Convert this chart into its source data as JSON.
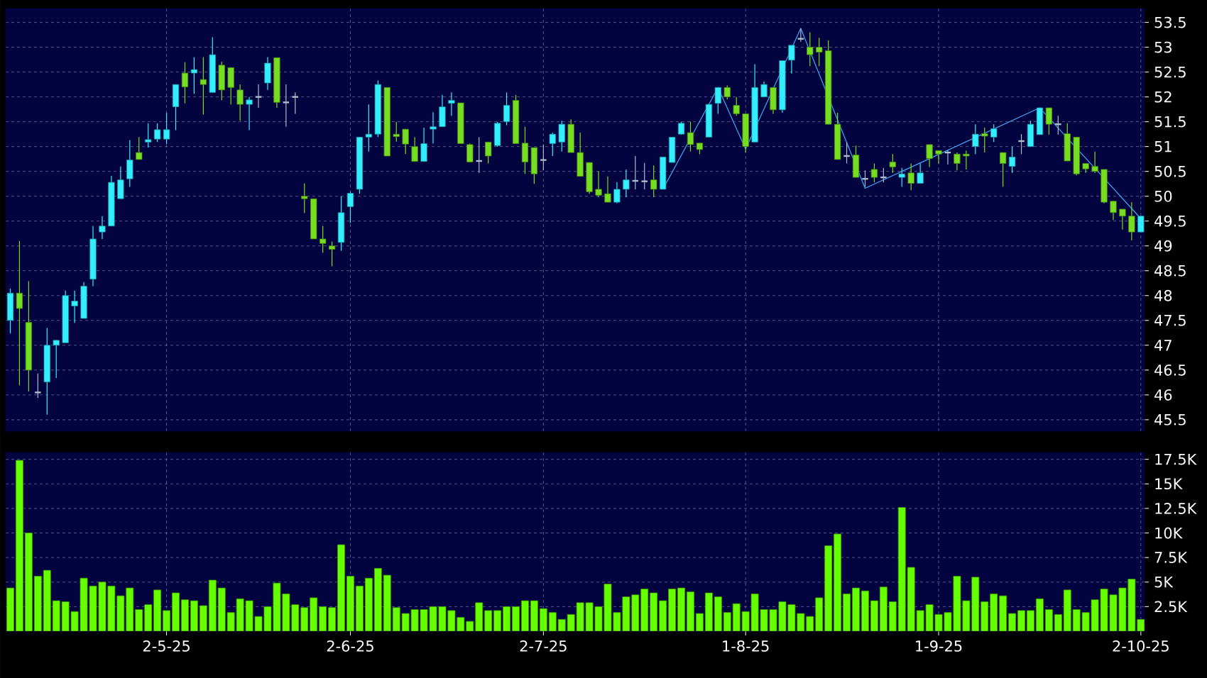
{
  "chart_data": [
    {
      "type": "candlestick",
      "grid": true,
      "tick_labels": "y",
      "ylim": [
        45.27,
        53.78
      ],
      "categories": [
        null,
        null,
        null,
        null,
        null,
        null,
        null,
        null,
        null,
        null,
        null,
        null,
        null,
        null,
        null,
        null,
        null,
        null,
        null,
        null,
        null,
        null,
        null,
        null,
        null,
        null,
        null,
        null,
        null,
        null,
        null,
        null,
        null,
        null,
        null,
        null,
        null,
        null,
        null,
        null,
        null,
        null,
        null,
        null,
        null,
        null,
        null,
        null,
        null,
        null,
        null,
        null,
        null,
        null,
        null,
        null,
        null,
        null,
        null,
        null,
        null,
        null,
        null,
        null,
        null,
        null,
        null,
        null,
        null,
        null,
        null,
        null,
        null,
        null,
        null,
        null,
        null,
        null,
        null,
        null,
        null,
        null,
        null,
        null,
        null,
        null,
        null,
        null,
        null,
        null,
        null,
        null,
        null,
        null,
        null,
        null,
        null,
        null,
        null,
        null,
        null,
        null,
        null,
        null,
        null,
        null,
        null,
        null,
        null,
        null,
        null,
        null,
        null,
        null,
        null,
        null,
        null,
        null,
        null,
        null,
        null,
        null,
        null,
        null
      ],
      "yticks": [
        45.5,
        46,
        46.5,
        47,
        47.5,
        48,
        48.5,
        49,
        49.5,
        50,
        50.5,
        51,
        51.5,
        52,
        52.5,
        53,
        53.5
      ],
      "ohlc": [
        [
          47.5,
          48.14,
          47.24,
          48.05
        ],
        [
          48.05,
          49.1,
          46.19,
          47.74
        ],
        [
          47.46,
          48.29,
          46.07,
          46.5
        ],
        [
          46.05,
          46.43,
          45.94,
          46.05
        ],
        [
          46.26,
          47.35,
          45.6,
          47.0
        ],
        [
          47.0,
          47.1,
          46.34,
          47.1
        ],
        [
          47.05,
          48.1,
          47.05,
          48.0
        ],
        [
          47.79,
          48.1,
          47.45,
          47.89
        ],
        [
          47.54,
          48.27,
          47.54,
          48.19
        ],
        [
          48.33,
          49.4,
          48.19,
          49.14
        ],
        [
          49.28,
          49.6,
          49.14,
          49.4
        ],
        [
          49.4,
          50.41,
          49.4,
          50.28
        ],
        [
          49.95,
          50.6,
          49.95,
          50.33
        ],
        [
          50.35,
          51.13,
          50.19,
          50.73
        ],
        [
          50.88,
          51.19,
          50.74,
          50.74
        ],
        [
          51.09,
          51.47,
          50.98,
          51.14
        ],
        [
          51.15,
          51.47,
          51.09,
          51.34
        ],
        [
          51.15,
          51.68,
          51.05,
          51.34
        ],
        [
          51.8,
          52.25,
          51.33,
          52.25
        ],
        [
          52.48,
          52.7,
          51.87,
          52.2
        ],
        [
          52.48,
          52.8,
          52.06,
          52.55
        ],
        [
          52.35,
          52.8,
          51.64,
          52.25
        ],
        [
          52.09,
          53.2,
          52.09,
          52.85
        ],
        [
          52.64,
          52.71,
          51.93,
          52.14
        ],
        [
          52.59,
          52.59,
          51.85,
          52.19
        ],
        [
          52.14,
          52.25,
          51.52,
          51.85
        ],
        [
          51.85,
          52.0,
          51.33,
          51.94
        ],
        [
          52.0,
          52.25,
          51.78,
          52.0
        ],
        [
          52.28,
          52.8,
          52.14,
          52.68
        ],
        [
          52.79,
          52.79,
          51.78,
          51.89
        ],
        [
          51.89,
          52.25,
          51.4,
          51.89
        ],
        [
          52.0,
          52.09,
          51.66,
          52.0
        ],
        [
          50.0,
          50.26,
          49.66,
          49.95
        ],
        [
          49.95,
          49.95,
          49.14,
          49.14
        ],
        [
          49.14,
          49.4,
          48.86,
          49.05
        ],
        [
          49.0,
          49.09,
          48.59,
          48.93
        ],
        [
          49.07,
          50.0,
          48.9,
          49.67
        ],
        [
          49.79,
          50.09,
          49.46,
          50.06
        ],
        [
          50.14,
          51.19,
          50.05,
          51.19
        ],
        [
          51.19,
          51.85,
          50.9,
          51.25
        ],
        [
          51.25,
          52.33,
          51.19,
          52.25
        ],
        [
          52.19,
          52.19,
          50.81,
          50.81
        ],
        [
          51.25,
          51.5,
          51.1,
          51.2
        ],
        [
          51.35,
          51.35,
          50.85,
          51.05
        ],
        [
          51.0,
          51.19,
          50.7,
          50.7
        ],
        [
          50.7,
          51.38,
          50.7,
          51.06
        ],
        [
          51.35,
          51.69,
          51.06,
          51.4
        ],
        [
          51.4,
          52.04,
          51.4,
          51.8
        ],
        [
          51.87,
          52.09,
          51.62,
          51.93
        ],
        [
          51.88,
          51.88,
          51.06,
          51.06
        ],
        [
          51.04,
          51.06,
          50.69,
          50.69
        ],
        [
          50.71,
          51.19,
          50.47,
          50.71
        ],
        [
          51.09,
          51.09,
          50.66,
          50.81
        ],
        [
          51.02,
          51.5,
          51.0,
          51.47
        ],
        [
          51.5,
          52.09,
          51.43,
          51.83
        ],
        [
          51.93,
          52.04,
          51.06,
          51.06
        ],
        [
          51.07,
          51.4,
          50.45,
          50.69
        ],
        [
          50.98,
          50.98,
          50.25,
          50.45
        ],
        [
          50.73,
          51.04,
          50.52,
          50.73
        ],
        [
          51.06,
          51.28,
          50.81,
          51.25
        ],
        [
          51.09,
          51.52,
          50.9,
          51.45
        ],
        [
          51.45,
          51.55,
          50.88,
          50.88
        ],
        [
          50.88,
          51.28,
          50.4,
          50.4
        ],
        [
          50.68,
          50.68,
          50.05,
          50.09
        ],
        [
          50.14,
          50.5,
          49.98,
          50.02
        ],
        [
          50.05,
          50.4,
          49.88,
          49.88
        ],
        [
          49.88,
          50.28,
          49.86,
          50.14
        ],
        [
          50.14,
          50.54,
          49.98,
          50.33
        ],
        [
          50.31,
          50.81,
          50.14,
          50.31
        ],
        [
          50.3,
          50.67,
          50.14,
          50.3
        ],
        [
          50.33,
          50.62,
          49.98,
          50.14
        ],
        [
          50.14,
          50.79,
          50.14,
          50.79
        ],
        [
          50.68,
          51.19,
          50.68,
          51.19
        ],
        [
          51.25,
          51.5,
          51.24,
          51.47
        ],
        [
          51.28,
          51.5,
          50.9,
          51.04
        ],
        [
          51.07,
          51.07,
          50.85,
          50.94
        ],
        [
          51.19,
          51.85,
          51.19,
          51.85
        ],
        [
          51.87,
          52.19,
          51.66,
          52.19
        ],
        [
          52.19,
          52.23,
          51.95,
          52.0
        ],
        [
          51.83,
          52.0,
          51.62,
          51.66
        ],
        [
          51.66,
          51.66,
          50.88,
          51.0
        ],
        [
          51.09,
          52.66,
          51.09,
          52.19
        ],
        [
          52.0,
          52.31,
          52.0,
          52.25
        ],
        [
          52.19,
          52.19,
          51.66,
          51.74
        ],
        [
          51.74,
          52.73,
          51.68,
          52.73
        ],
        [
          52.74,
          53.04,
          52.47,
          53.04
        ],
        [
          53.17,
          53.38,
          53.11,
          53.17
        ],
        [
          53.0,
          53.3,
          52.62,
          52.85
        ],
        [
          53.0,
          53.19,
          52.62,
          52.9
        ],
        [
          52.93,
          53.14,
          51.45,
          51.45
        ],
        [
          51.45,
          51.68,
          50.74,
          50.74
        ],
        [
          50.81,
          51.09,
          50.66,
          50.81
        ],
        [
          50.83,
          51.02,
          50.38,
          50.38
        ],
        [
          50.35,
          50.52,
          50.19,
          50.35
        ],
        [
          50.54,
          50.66,
          50.28,
          50.38
        ],
        [
          50.38,
          50.57,
          50.28,
          50.38
        ],
        [
          50.69,
          50.85,
          50.47,
          50.59
        ],
        [
          50.38,
          50.57,
          50.19,
          50.45
        ],
        [
          50.47,
          50.66,
          50.12,
          50.26
        ],
        [
          50.26,
          50.66,
          50.26,
          50.47
        ],
        [
          51.04,
          51.04,
          50.59,
          50.76
        ],
        [
          50.92,
          50.92,
          50.66,
          50.85
        ],
        [
          50.88,
          50.92,
          50.64,
          50.88
        ],
        [
          50.85,
          50.88,
          50.52,
          50.66
        ],
        [
          50.85,
          50.92,
          50.54,
          50.81
        ],
        [
          51.0,
          51.45,
          50.85,
          51.25
        ],
        [
          51.26,
          51.38,
          50.88,
          51.21
        ],
        [
          51.19,
          51.45,
          51.09,
          51.36
        ],
        [
          50.88,
          50.88,
          50.19,
          50.66
        ],
        [
          50.6,
          51.0,
          50.47,
          50.79
        ],
        [
          51.11,
          51.25,
          50.85,
          51.11
        ],
        [
          51.0,
          51.52,
          51.0,
          51.45
        ],
        [
          51.24,
          51.78,
          51.24,
          51.78
        ],
        [
          51.78,
          51.78,
          51.24,
          51.45
        ],
        [
          51.45,
          51.62,
          51.24,
          51.45
        ],
        [
          51.26,
          51.47,
          50.71,
          50.71
        ],
        [
          51.19,
          51.19,
          50.42,
          50.45
        ],
        [
          50.66,
          50.66,
          50.47,
          50.55
        ],
        [
          50.6,
          50.9,
          50.47,
          50.5
        ],
        [
          50.54,
          50.54,
          49.86,
          49.88
        ],
        [
          49.9,
          49.9,
          49.52,
          49.67
        ],
        [
          49.74,
          49.74,
          49.33,
          49.6
        ],
        [
          49.6,
          49.88,
          49.11,
          49.28
        ],
        [
          49.28,
          49.6,
          49.28,
          49.6
        ]
      ],
      "colors": [
        "#33eeff",
        "#77dd22",
        "#77dd22",
        "#aabbcc",
        "#33eeff",
        "#33eeff",
        "#33eeff",
        "#33eeff",
        "#33eeff",
        "#33eeff",
        "#33eeff",
        "#33eeff",
        "#33eeff",
        "#33eeff",
        "#77dd22",
        "#33eeff",
        "#33eeff",
        "#33eeff",
        "#33eeff",
        "#77dd22",
        "#33eeff",
        "#77dd22",
        "#33eeff",
        "#77dd22",
        "#77dd22",
        "#77dd22",
        "#33eeff",
        "#aabbcc",
        "#33eeff",
        "#77dd22",
        "#aabbcc",
        "#aabbcc",
        "#77dd22",
        "#77dd22",
        "#77dd22",
        "#77dd22",
        "#33eeff",
        "#33eeff",
        "#33eeff",
        "#33eeff",
        "#33eeff",
        "#77dd22",
        "#77dd22",
        "#77dd22",
        "#77dd22",
        "#33eeff",
        "#33eeff",
        "#33eeff",
        "#33eeff",
        "#77dd22",
        "#77dd22",
        "#aabbcc",
        "#77dd22",
        "#33eeff",
        "#33eeff",
        "#77dd22",
        "#77dd22",
        "#77dd22",
        "#aabbcc",
        "#33eeff",
        "#33eeff",
        "#77dd22",
        "#77dd22",
        "#77dd22",
        "#77dd22",
        "#77dd22",
        "#33eeff",
        "#33eeff",
        "#aabbcc",
        "#aabbcc",
        "#77dd22",
        "#33eeff",
        "#33eeff",
        "#33eeff",
        "#77dd22",
        "#77dd22",
        "#33eeff",
        "#33eeff",
        "#77dd22",
        "#77dd22",
        "#77dd22",
        "#33eeff",
        "#33eeff",
        "#77dd22",
        "#33eeff",
        "#33eeff",
        "#aabbcc",
        "#77dd22",
        "#77dd22",
        "#77dd22",
        "#77dd22",
        "#aabbcc",
        "#77dd22",
        "#aabbcc",
        "#77dd22",
        "#aabbcc",
        "#77dd22",
        "#33eeff",
        "#77dd22",
        "#33eeff",
        "#77dd22",
        "#77dd22",
        "#aabbcc",
        "#77dd22",
        "#77dd22",
        "#33eeff",
        "#77dd22",
        "#33eeff",
        "#77dd22",
        "#33eeff",
        "#aabbcc",
        "#33eeff",
        "#33eeff",
        "#77dd22",
        "#aabbcc",
        "#77dd22",
        "#77dd22",
        "#77dd22",
        "#77dd22",
        "#77dd22",
        "#77dd22",
        "#77dd22",
        "#77dd22",
        "#33eeff"
      ],
      "series": [
        {
          "type": "line",
          "color": "#3fa9f5",
          "values": [
            null,
            null,
            null,
            null,
            null,
            null,
            null,
            null,
            null,
            null,
            null,
            null,
            null,
            null,
            null,
            null,
            null,
            null,
            null,
            null,
            null,
            null,
            null,
            null,
            null,
            null,
            null,
            null,
            null,
            null,
            null,
            null,
            null,
            null,
            null,
            null,
            null,
            null,
            null,
            null,
            null,
            null,
            null,
            null,
            null,
            null,
            null,
            null,
            null,
            null,
            null,
            null,
            null,
            null,
            null,
            null,
            null,
            null,
            null,
            null,
            null,
            null,
            null,
            null,
            null,
            null,
            null,
            null,
            null,
            null,
            null,
            50.14,
            null,
            null,
            null,
            null,
            null,
            52.19,
            null,
            null,
            50.95,
            null,
            null,
            null,
            null,
            null,
            53.38,
            null,
            null,
            null,
            null,
            null,
            null,
            50.16,
            null,
            null,
            null,
            null,
            null,
            null,
            null,
            null,
            null,
            null,
            null,
            null,
            null,
            null,
            null,
            null,
            null,
            null,
            51.78,
            null,
            null,
            null,
            null,
            null,
            null,
            null,
            null,
            null,
            null,
            49.55
          ]
        }
      ]
    },
    {
      "type": "bar",
      "grid": true,
      "color": "#66ff00",
      "ylim": [
        0,
        18.2
      ],
      "categories": [
        null,
        null,
        null,
        null,
        null,
        null,
        null,
        null,
        null,
        null,
        null,
        null,
        null,
        null,
        null,
        null,
        null,
        "2-5-25",
        null,
        null,
        null,
        null,
        null,
        null,
        null,
        null,
        null,
        null,
        null,
        null,
        null,
        null,
        null,
        null,
        null,
        null,
        null,
        "2-6-25",
        null,
        null,
        null,
        null,
        null,
        null,
        null,
        null,
        null,
        null,
        null,
        null,
        null,
        null,
        null,
        null,
        null,
        null,
        null,
        null,
        "2-7-25",
        null,
        null,
        null,
        null,
        null,
        null,
        null,
        null,
        null,
        null,
        null,
        null,
        null,
        null,
        null,
        null,
        null,
        null,
        null,
        null,
        null,
        "1-8-25",
        null,
        null,
        null,
        null,
        null,
        null,
        null,
        null,
        null,
        null,
        null,
        null,
        null,
        null,
        null,
        null,
        null,
        null,
        null,
        null,
        "1-9-25",
        null,
        null,
        null,
        null,
        null,
        null,
        null,
        null,
        null,
        null,
        null,
        null,
        null,
        null,
        null,
        null,
        null,
        null,
        null,
        null,
        null,
        "2-10-25"
      ],
      "yticks": [
        {
          "value": 2.5,
          "label": "2.5K"
        },
        {
          "value": 5,
          "label": "5K"
        },
        {
          "value": 7.5,
          "label": "7.5K"
        },
        {
          "value": 10,
          "label": "10K"
        },
        {
          "value": 12.5,
          "label": "12.5K"
        },
        {
          "value": 15,
          "label": "15K"
        },
        {
          "value": 17.5,
          "label": "17.5K"
        }
      ],
      "values": [
        4.4,
        17.4,
        10.0,
        5.6,
        6.2,
        3.1,
        3.0,
        2.0,
        5.4,
        4.6,
        5.0,
        4.6,
        3.6,
        4.4,
        2.2,
        2.7,
        4.2,
        2.1,
        3.9,
        3.2,
        3.1,
        2.6,
        5.2,
        4.4,
        1.9,
        3.3,
        3.1,
        1.5,
        2.5,
        4.9,
        3.8,
        2.7,
        2.4,
        3.4,
        2.5,
        2.4,
        8.8,
        5.6,
        4.6,
        5.4,
        6.4,
        5.7,
        2.4,
        1.8,
        2.2,
        2.2,
        2.5,
        2.5,
        2.1,
        1.4,
        1.0,
        2.9,
        2.1,
        2.1,
        2.5,
        2.5,
        3.1,
        3.1,
        2.3,
        1.9,
        1.2,
        1.7,
        2.9,
        2.9,
        2.5,
        4.8,
        1.9,
        3.5,
        3.7,
        4.3,
        3.9,
        3.1,
        4.3,
        4.4,
        4.0,
        1.8,
        3.9,
        3.5,
        1.9,
        2.8,
        2.0,
        3.8,
        2.2,
        2.2,
        3.0,
        2.7,
        1.8,
        1.5,
        3.4,
        8.7,
        9.9,
        3.8,
        4.4,
        4.1,
        3.1,
        4.5,
        3.0,
        12.6,
        6.5,
        2.1,
        2.7,
        1.7,
        1.9,
        5.6,
        3.1,
        5.5,
        3.0,
        3.8,
        3.6,
        1.8,
        2.1,
        2.1,
        3.3,
        2.2,
        1.7,
        4.2,
        2.2,
        1.9,
        3.2,
        4.3,
        3.7,
        4.4,
        5.3,
        1.2
      ]
    }
  ]
}
